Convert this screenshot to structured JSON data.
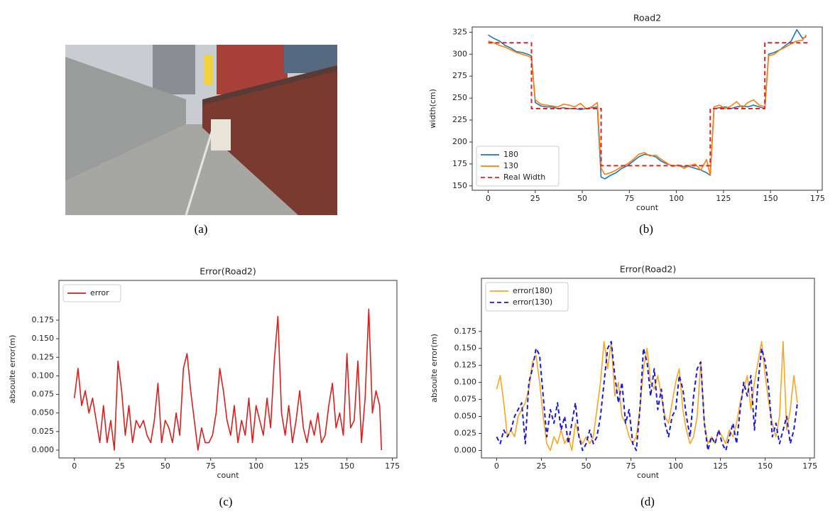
{
  "photo": {
    "caption": "(a)"
  },
  "chart_data": [
    {
      "type": "line",
      "caption": "(b)",
      "title": "Road2",
      "xlabel": "count",
      "ylabel": "width(cm)",
      "xlim": [
        -8.5,
        177.5
      ],
      "ylim": [
        145,
        331
      ],
      "xticks": [
        0,
        25,
        50,
        75,
        100,
        125,
        150,
        175
      ],
      "yticks": [
        150,
        175,
        200,
        225,
        250,
        275,
        300,
        325
      ],
      "legend": "lower left",
      "series": [
        {
          "name": "180",
          "color": "#1f77b4",
          "linestyle": "solid",
          "x": [
            0,
            3,
            6,
            9,
            12,
            15,
            18,
            21,
            23,
            25,
            28,
            31,
            34,
            37,
            40,
            43,
            46,
            49,
            52,
            55,
            58,
            60,
            62,
            65,
            68,
            71,
            74,
            77,
            80,
            83,
            86,
            89,
            92,
            95,
            98,
            101,
            104,
            107,
            110,
            113,
            116,
            118,
            120,
            123,
            126,
            129,
            132,
            135,
            138,
            141,
            144,
            147,
            149,
            152,
            155,
            158,
            161,
            164,
            167,
            169
          ],
          "values": [
            322,
            318,
            315,
            310,
            307,
            303,
            302,
            300,
            298,
            245,
            241,
            240,
            240,
            238,
            239,
            238,
            238,
            237,
            238,
            239,
            240,
            160,
            158,
            162,
            165,
            170,
            173,
            178,
            183,
            186,
            185,
            183,
            178,
            175,
            173,
            173,
            172,
            172,
            170,
            168,
            165,
            162,
            238,
            239,
            240,
            238,
            240,
            241,
            240,
            242,
            240,
            238,
            300,
            302,
            305,
            310,
            315,
            328,
            318,
            320
          ]
        },
        {
          "name": "130",
          "color": "#ff7f0e",
          "linestyle": "solid",
          "x": [
            0,
            3,
            6,
            9,
            12,
            15,
            18,
            21,
            23,
            25,
            28,
            31,
            34,
            37,
            40,
            43,
            46,
            49,
            52,
            55,
            58,
            60,
            62,
            65,
            68,
            71,
            74,
            77,
            80,
            83,
            86,
            89,
            92,
            95,
            98,
            101,
            104,
            107,
            110,
            113,
            116,
            118,
            120,
            123,
            126,
            129,
            132,
            135,
            138,
            141,
            144,
            147,
            149,
            152,
            155,
            158,
            161,
            164,
            167,
            169
          ],
          "values": [
            315,
            313,
            310,
            308,
            305,
            302,
            300,
            298,
            296,
            248,
            243,
            242,
            241,
            240,
            243,
            242,
            240,
            244,
            238,
            240,
            245,
            170,
            163,
            165,
            168,
            172,
            175,
            180,
            186,
            188,
            184,
            185,
            180,
            176,
            172,
            174,
            170,
            173,
            175,
            168,
            180,
            162,
            240,
            242,
            238,
            241,
            246,
            239,
            245,
            248,
            242,
            240,
            298,
            300,
            305,
            308,
            312,
            315,
            316,
            322
          ]
        },
        {
          "name": "Real Width",
          "color": "#d62728",
          "linestyle": "dashed",
          "x": [
            0,
            23,
            23,
            60,
            60,
            118,
            118,
            147,
            147,
            170
          ],
          "values": [
            313,
            313,
            238,
            238,
            173,
            173,
            238,
            238,
            313,
            313
          ]
        }
      ]
    },
    {
      "type": "line",
      "caption": "(c)",
      "title": "Error(Road2)",
      "xlabel": "count",
      "ylabel": "absoulte error(m)",
      "xlim": [
        -8.5,
        177.5
      ],
      "ylim": [
        -0.0105,
        0.2285
      ],
      "xticks": [
        0,
        25,
        50,
        75,
        100,
        125,
        150,
        175
      ],
      "yticks": [
        {
          "value": 0,
          "label": "0.000"
        },
        {
          "value": 0.025,
          "label": "0.025"
        },
        {
          "value": 0.05,
          "label": "0.050"
        },
        {
          "value": 0.075,
          "label": "0.075"
        },
        {
          "value": 0.1,
          "label": "0.100"
        },
        {
          "value": 0.125,
          "label": "0.125"
        },
        {
          "value": 0.15,
          "label": "0.150"
        },
        {
          "value": 0.175,
          "label": "0.175"
        }
      ],
      "legend": "upper left",
      "x": [
        0,
        2,
        4,
        6,
        8,
        10,
        12,
        14,
        16,
        18,
        20,
        22,
        24,
        26,
        28,
        30,
        32,
        34,
        36,
        38,
        40,
        42,
        44,
        46,
        48,
        50,
        52,
        54,
        56,
        58,
        60,
        62,
        64,
        66,
        68,
        70,
        72,
        74,
        76,
        78,
        80,
        82,
        84,
        86,
        88,
        90,
        92,
        94,
        96,
        98,
        100,
        102,
        104,
        106,
        108,
        110,
        112,
        114,
        116,
        118,
        120,
        122,
        124,
        126,
        128,
        130,
        132,
        134,
        136,
        138,
        140,
        142,
        144,
        146,
        148,
        150,
        152,
        154,
        156,
        158,
        160,
        162,
        164,
        166,
        168,
        169
      ],
      "series": [
        {
          "name": "error",
          "color": "#d62020",
          "linestyle": "solid",
          "values": [
            0.07,
            0.11,
            0.06,
            0.08,
            0.05,
            0.07,
            0.04,
            0.01,
            0.06,
            0.01,
            0.04,
            0.0,
            0.12,
            0.08,
            0.02,
            0.06,
            0.01,
            0.04,
            0.03,
            0.04,
            0.02,
            0.01,
            0.04,
            0.09,
            0.01,
            0.04,
            0.03,
            0.01,
            0.05,
            0.02,
            0.11,
            0.13,
            0.08,
            0.04,
            0.0,
            0.03,
            0.01,
            0.01,
            0.02,
            0.05,
            0.11,
            0.08,
            0.04,
            0.02,
            0.06,
            0.01,
            0.04,
            0.02,
            0.07,
            0.01,
            0.06,
            0.04,
            0.02,
            0.07,
            0.03,
            0.12,
            0.18,
            0.05,
            0.02,
            0.06,
            0.01,
            0.04,
            0.08,
            0.03,
            0.01,
            0.04,
            0.02,
            0.05,
            0.01,
            0.02,
            0.06,
            0.09,
            0.03,
            0.05,
            0.02,
            0.13,
            0.03,
            0.04,
            0.12,
            0.01,
            0.07,
            0.19,
            0.05,
            0.08,
            0.06,
            0.0
          ]
        }
      ]
    },
    {
      "type": "line",
      "caption": "(d)",
      "title": "Error(Road2)",
      "xlabel": "count",
      "ylabel": "absoulte error(m)",
      "xlim": [
        -8.5,
        177.5
      ],
      "ylim": [
        -0.011,
        0.253
      ],
      "xticks": [
        0,
        25,
        50,
        75,
        100,
        125,
        150,
        175
      ],
      "yticks": [
        {
          "value": 0,
          "label": "0.000"
        },
        {
          "value": 0.025,
          "label": "0.025"
        },
        {
          "value": 0.05,
          "label": "0.050"
        },
        {
          "value": 0.075,
          "label": "0.075"
        },
        {
          "value": 0.1,
          "label": "0.100"
        },
        {
          "value": 0.125,
          "label": "0.125"
        },
        {
          "value": 0.15,
          "label": "0.150"
        },
        {
          "value": 0.175,
          "label": "0.175"
        }
      ],
      "legend": "upper left",
      "x": [
        0,
        2,
        4,
        6,
        8,
        10,
        12,
        14,
        16,
        18,
        20,
        22,
        24,
        26,
        28,
        30,
        32,
        34,
        36,
        38,
        40,
        42,
        44,
        46,
        48,
        50,
        52,
        54,
        56,
        58,
        60,
        62,
        64,
        66,
        68,
        70,
        72,
        74,
        76,
        78,
        80,
        82,
        84,
        86,
        88,
        90,
        92,
        94,
        96,
        98,
        100,
        102,
        104,
        106,
        108,
        110,
        112,
        114,
        116,
        118,
        120,
        122,
        124,
        126,
        128,
        130,
        132,
        134,
        136,
        138,
        140,
        142,
        144,
        146,
        148,
        150,
        152,
        154,
        156,
        158,
        160,
        162,
        164,
        166,
        168
      ],
      "series": [
        {
          "name": "error(180)",
          "color": "#f5a623",
          "linestyle": "solid",
          "values": [
            0.09,
            0.11,
            0.07,
            0.02,
            0.03,
            0.02,
            0.05,
            0.06,
            0.07,
            0.09,
            0.13,
            0.14,
            0.1,
            0.05,
            0.01,
            0.0,
            0.02,
            0.01,
            0.03,
            0.01,
            0.02,
            0.0,
            0.04,
            0.02,
            0.01,
            0.02,
            0.01,
            0.02,
            0.06,
            0.1,
            0.16,
            0.12,
            0.16,
            0.08,
            0.1,
            0.05,
            0.04,
            0.02,
            0.01,
            0.02,
            0.06,
            0.12,
            0.15,
            0.1,
            0.09,
            0.11,
            0.08,
            0.05,
            0.04,
            0.07,
            0.1,
            0.12,
            0.06,
            0.03,
            0.01,
            0.02,
            0.05,
            0.13,
            0.04,
            0.01,
            0.02,
            0.01,
            0.03,
            0.02,
            0.01,
            0.03,
            0.02,
            0.04,
            0.07,
            0.09,
            0.11,
            0.06,
            0.1,
            0.13,
            0.16,
            0.11,
            0.07,
            0.04,
            0.02,
            0.05,
            0.16,
            0.03,
            0.06,
            0.11,
            0.07
          ]
        },
        {
          "name": "error(130)",
          "color": "#1a1ad6",
          "linestyle": "dashed",
          "values": [
            0.02,
            0.01,
            0.03,
            0.02,
            0.03,
            0.05,
            0.06,
            0.07,
            0.01,
            0.1,
            0.12,
            0.15,
            0.14,
            0.08,
            0.02,
            0.06,
            0.04,
            0.07,
            0.03,
            0.05,
            0.01,
            0.04,
            0.07,
            0.02,
            0.0,
            0.01,
            0.03,
            0.01,
            0.02,
            0.05,
            0.1,
            0.15,
            0.16,
            0.11,
            0.07,
            0.1,
            0.04,
            0.06,
            0.01,
            0.0,
            0.06,
            0.15,
            0.13,
            0.08,
            0.12,
            0.06,
            0.09,
            0.04,
            0.02,
            0.05,
            0.06,
            0.11,
            0.09,
            0.05,
            0.02,
            0.08,
            0.12,
            0.13,
            0.04,
            0.0,
            0.02,
            0.01,
            0.03,
            0.01,
            0.0,
            0.02,
            0.04,
            0.01,
            0.06,
            0.1,
            0.08,
            0.11,
            0.03,
            0.1,
            0.15,
            0.13,
            0.09,
            0.02,
            0.04,
            0.01,
            0.03,
            0.05,
            0.01,
            0.03,
            0.07
          ]
        }
      ]
    }
  ]
}
